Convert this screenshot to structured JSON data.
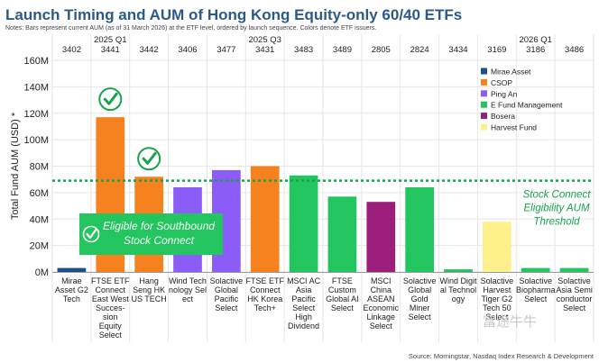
{
  "chart_data": {
    "type": "bar",
    "title": "Launch Timing and AUM of Hong Kong Equity-only 60/40 ETFs",
    "subtitle": "Notes: Bars represent current AUM (as of 31 March 2026) at the ETF level, ordered by launch sequence. Colors denote ETF issuers.",
    "ylabel": "Total Fund AUM (USD) *",
    "ylim": [
      0,
      160
    ],
    "yticks": [
      0,
      20,
      40,
      60,
      80,
      100,
      120,
      140,
      160
    ],
    "yticklabels": [
      "0M",
      "20M",
      "40M",
      "60M",
      "80M",
      "100M",
      "120M",
      "140M",
      "160M"
    ],
    "threshold": {
      "value": 69,
      "label_lines": [
        "Stock Connect",
        "Eligibility AUM",
        "Threshold"
      ]
    },
    "eligible_box": {
      "label_lines": [
        "Eligible for Southbound",
        "Stock Connect"
      ]
    },
    "quarters": [
      {
        "label": "2025 Q1",
        "center_index": 1
      },
      {
        "label": "2025 Q3",
        "center_index": 5
      },
      {
        "label": "2026 Q1",
        "center_index": 12
      }
    ],
    "legend": [
      {
        "name": "Mirae Asset",
        "color": "#1f4e8c"
      },
      {
        "name": "CSOP",
        "color": "#f5821f"
      },
      {
        "name": "Ping An",
        "color": "#8b5cf6"
      },
      {
        "name": "E Fund Management",
        "color": "#22c55e"
      },
      {
        "name": "Bosera",
        "color": "#9b1f7a"
      },
      {
        "name": "Harvest Fund",
        "color": "#fef08a"
      }
    ],
    "bars": [
      {
        "code": "3402",
        "label_lines": [
          "Mirae",
          "Asset G2",
          "Tech"
        ],
        "value": 3,
        "issuer": "Mirae Asset",
        "check": false
      },
      {
        "code": "3441",
        "label_lines": [
          "FTSE ETF",
          "Connect",
          "East West",
          "Succes-",
          "sion",
          "Equity",
          "Select"
        ],
        "value": 117,
        "issuer": "CSOP",
        "check": true
      },
      {
        "code": "3442",
        "label_lines": [
          "Hang",
          "Seng HK",
          "US TECH"
        ],
        "value": 72,
        "issuer": "CSOP",
        "check": true
      },
      {
        "code": "3406",
        "label_lines": [
          "Wind Tech",
          "nology Sel",
          "ect"
        ],
        "value": 64,
        "issuer": "Ping An",
        "check": false
      },
      {
        "code": "3477",
        "label_lines": [
          "Solactive",
          "Global",
          "Pacific",
          "Select"
        ],
        "value": 77,
        "issuer": "Ping An",
        "check": false
      },
      {
        "code": "3431",
        "label_lines": [
          "FTSE ETF",
          "Connect",
          "HK Korea",
          "Tech+"
        ],
        "value": 80,
        "issuer": "CSOP",
        "check": false
      },
      {
        "code": "3483",
        "label_lines": [
          "MSCI AC",
          "Asia",
          "Pacific",
          "Select",
          "High",
          "Dividend"
        ],
        "value": 73,
        "issuer": "E Fund Management",
        "check": false
      },
      {
        "code": "3489",
        "label_lines": [
          "FTSE",
          "Custom",
          "Global AI",
          "Select"
        ],
        "value": 57,
        "issuer": "E Fund Management",
        "check": false
      },
      {
        "code": "2805",
        "label_lines": [
          "MSCI",
          "China",
          "ASEAN",
          "Economic",
          "Linkage",
          "Select"
        ],
        "value": 53,
        "issuer": "Bosera",
        "check": false
      },
      {
        "code": "2824",
        "label_lines": [
          "Solactive",
          "Global",
          "Gold",
          "Miner",
          "Select"
        ],
        "value": 64,
        "issuer": "E Fund Management",
        "check": false
      },
      {
        "code": "3434",
        "label_lines": [
          "Wind Digit",
          "al Technol",
          "ogy"
        ],
        "value": 2,
        "issuer": "E Fund Management",
        "check": false
      },
      {
        "code": "3169",
        "label_lines": [
          "Solactive",
          "Harvest",
          "Tiger G2",
          "Tech 50",
          "Select"
        ],
        "value": 38,
        "issuer": "Harvest Fund",
        "check": false
      },
      {
        "code": "3186",
        "label_lines": [
          "Solactive",
          "Biopharma",
          "Select"
        ],
        "value": 3,
        "issuer": "E Fund Management",
        "check": false
      },
      {
        "code": "3486",
        "label_lines": [
          "Solactive",
          "Asia Semi",
          "conductor",
          "Select"
        ],
        "value": 3,
        "issuer": "E Fund Management",
        "check": false
      }
    ],
    "source": "Source: Morningstar, Nasdaq Index Research & Development",
    "watermark": "富途牛牛"
  }
}
